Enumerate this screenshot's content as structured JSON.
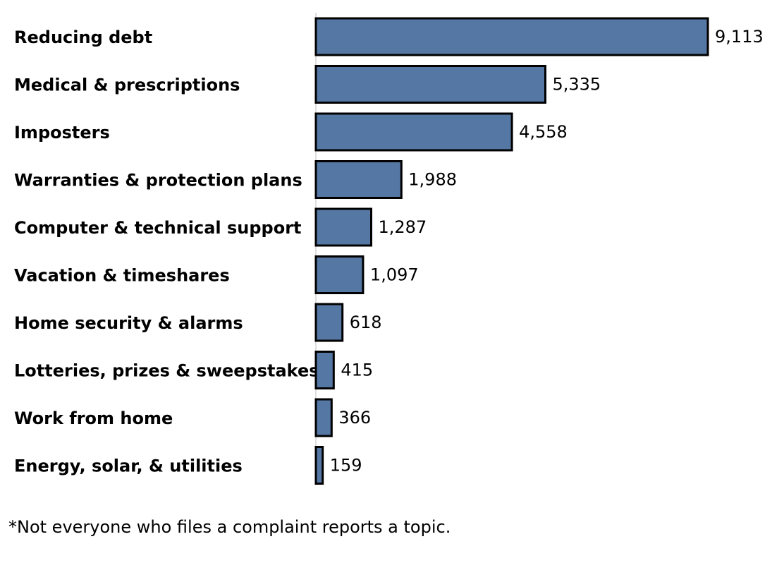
{
  "chart_data": {
    "type": "bar",
    "orientation": "horizontal",
    "categories": [
      "Reducing debt",
      "Medical & prescriptions",
      "Imposters",
      "Warranties & protection plans",
      "Computer & technical support",
      "Vacation & timeshares",
      "Home security & alarms",
      "Lotteries, prizes & sweepstakes",
      "Work from home",
      "Energy, solar, & utilities"
    ],
    "values": [
      9113,
      5335,
      4558,
      1988,
      1287,
      1097,
      618,
      415,
      366,
      159
    ],
    "value_labels": [
      "9,113",
      "5,335",
      "4,558",
      "1,988",
      "1,287",
      "1,097",
      "618",
      "415",
      "366",
      "159"
    ],
    "bar_color": "#5577a3",
    "bar_edge_color": "#000000",
    "axis_color": "#bfbfbf",
    "grid": false,
    "legend": "none"
  },
  "footnote": "*Not everyone who files a complaint reports a topic."
}
